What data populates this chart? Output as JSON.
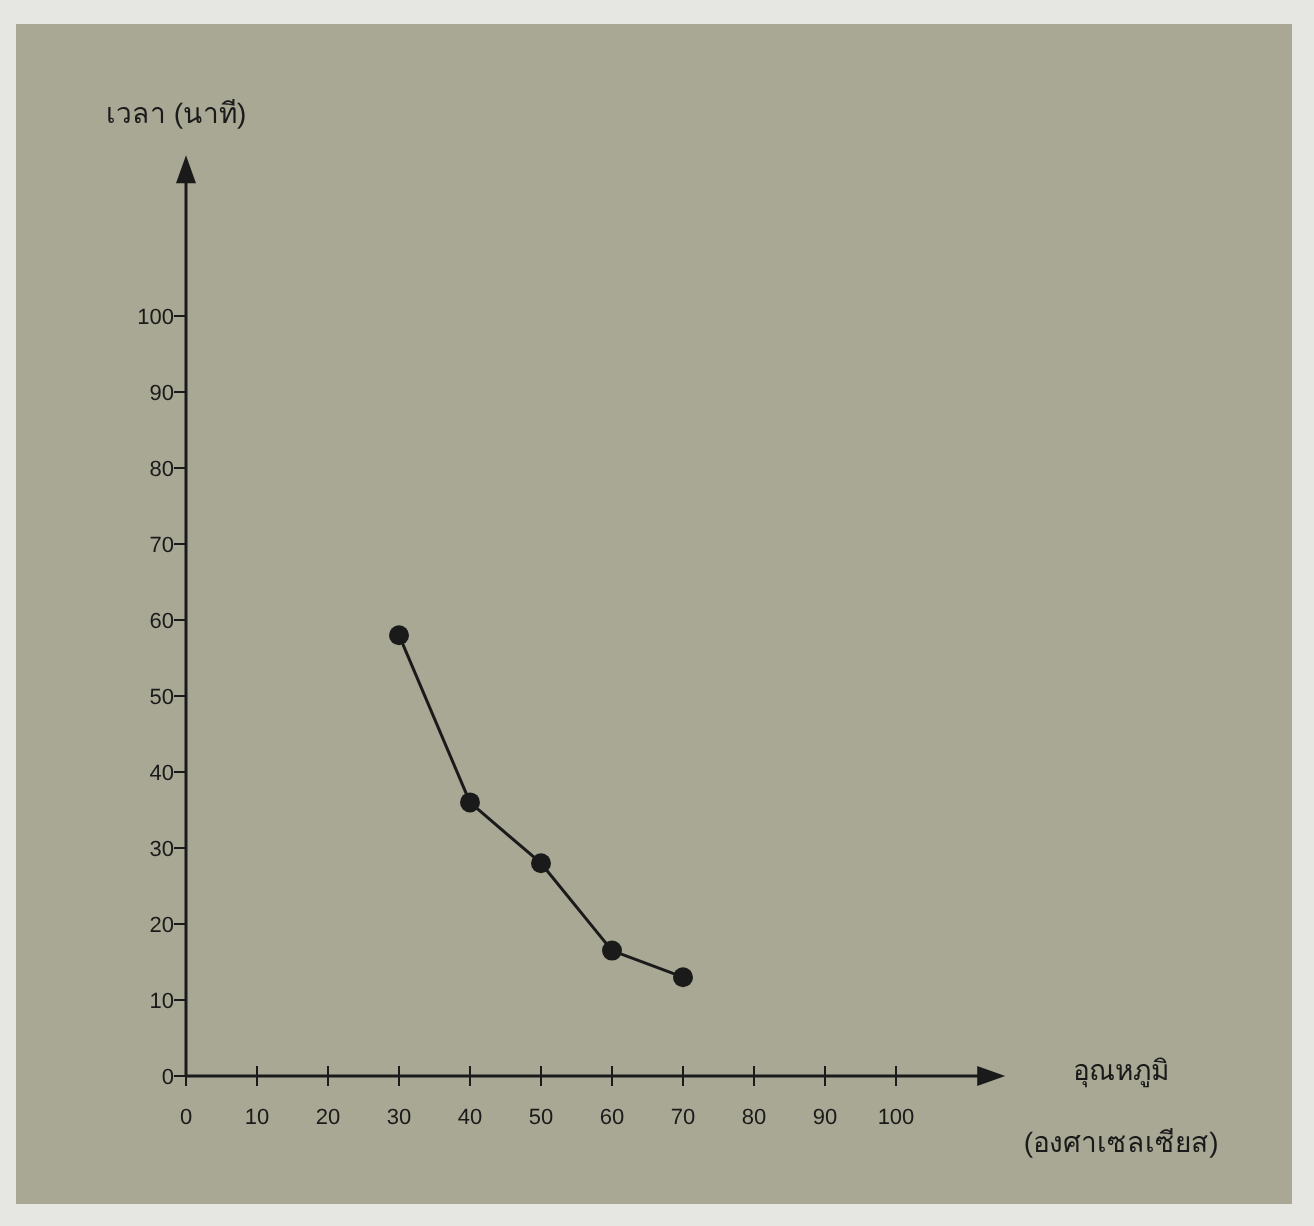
{
  "chart_data": {
    "type": "line",
    "xlabel": "อุณหภูมิ (องศาเซลเซียส)",
    "ylabel": "เวลา (นาที)",
    "x": [
      30,
      40,
      50,
      60,
      70
    ],
    "series": [
      {
        "color": "#1a1a1a",
        "values": [
          58,
          36,
          28,
          16.5,
          13
        ]
      }
    ],
    "xlim": [
      0,
      112
    ],
    "ylim": [
      0,
      118
    ],
    "xticks": [
      0,
      10,
      20,
      30,
      40,
      50,
      60,
      70,
      80,
      90,
      100
    ],
    "yticks": [
      0,
      10,
      20,
      30,
      40,
      50,
      60,
      70,
      80,
      90,
      100
    ],
    "marker": "circle",
    "line_style": "solid",
    "grid": false
  }
}
